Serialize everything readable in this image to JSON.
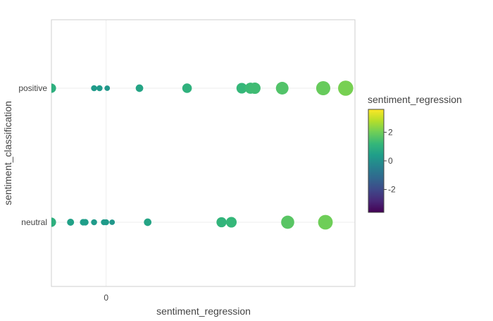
{
  "chart_data": {
    "type": "scatter",
    "xlabel": "sentiment_regression",
    "ylabel": "sentiment_classification",
    "xlim": [
      -1.0,
      4.55
    ],
    "x_ticks": [
      {
        "value": 0,
        "label": "0"
      }
    ],
    "categories": [
      "neutral",
      "positive"
    ],
    "grid": true,
    "colorbar": {
      "title": "sentiment_regression",
      "range": [
        -3.6,
        3.6
      ],
      "ticks": [
        {
          "value": 2,
          "label": "2"
        },
        {
          "value": 0,
          "label": "0"
        },
        {
          "value": -2,
          "label": "-2"
        }
      ],
      "colorscale": [
        "#440154",
        "#482878",
        "#3e4989",
        "#31688e",
        "#26828e",
        "#1f9e89",
        "#35b779",
        "#6ece58",
        "#b5de2b",
        "#fde725"
      ]
    },
    "points": [
      {
        "category": "positive",
        "x": -1.0,
        "value": 0.95
      },
      {
        "category": "positive",
        "x": -0.22,
        "value": 0.3
      },
      {
        "category": "positive",
        "x": -0.12,
        "value": 0.3
      },
      {
        "category": "positive",
        "x": 0.02,
        "value": 0.2
      },
      {
        "category": "positive",
        "x": 0.61,
        "value": 0.6
      },
      {
        "category": "positive",
        "x": 1.48,
        "value": 1.0
      },
      {
        "category": "positive",
        "x": 2.48,
        "value": 1.2
      },
      {
        "category": "positive",
        "x": 2.64,
        "value": 1.3
      },
      {
        "category": "positive",
        "x": 2.72,
        "value": 1.35
      },
      {
        "category": "positive",
        "x": 3.22,
        "value": 1.6
      },
      {
        "category": "positive",
        "x": 3.97,
        "value": 1.9
      },
      {
        "category": "positive",
        "x": 4.38,
        "value": 2.1
      },
      {
        "category": "neutral",
        "x": -1.0,
        "value": 0.95
      },
      {
        "category": "neutral",
        "x": -0.65,
        "value": 0.5
      },
      {
        "category": "neutral",
        "x": -0.42,
        "value": 0.4
      },
      {
        "category": "neutral",
        "x": -0.38,
        "value": 0.4
      },
      {
        "category": "neutral",
        "x": -0.22,
        "value": 0.3
      },
      {
        "category": "neutral",
        "x": -0.04,
        "value": 0.3
      },
      {
        "category": "neutral",
        "x": 0.0,
        "value": 0.3
      },
      {
        "category": "neutral",
        "x": 0.11,
        "value": 0.2
      },
      {
        "category": "neutral",
        "x": 0.76,
        "value": 0.6
      },
      {
        "category": "neutral",
        "x": 2.11,
        "value": 1.1
      },
      {
        "category": "neutral",
        "x": 2.29,
        "value": 1.2
      },
      {
        "category": "neutral",
        "x": 3.32,
        "value": 1.7
      },
      {
        "category": "neutral",
        "x": 4.01,
        "value": 2.0
      }
    ]
  }
}
